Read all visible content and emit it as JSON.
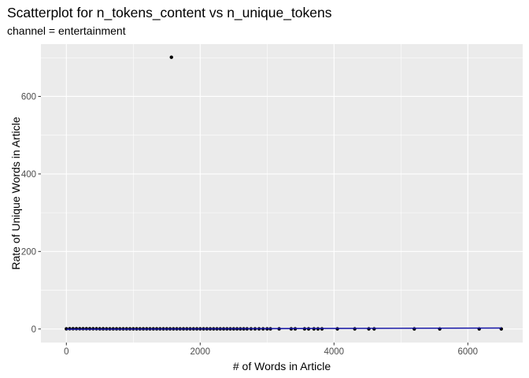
{
  "chart_data": {
    "type": "scatter",
    "title": "Scatterplot for n_tokens_content vs n_unique_tokens",
    "subtitle": "channel =  entertainment",
    "xlabel": "# of Words in Article",
    "ylabel": "Rate of Unique Words in Article",
    "xlim": [
      -380,
      6820
    ],
    "ylim": [
      -35,
      735
    ],
    "x_ticks": [
      0,
      2000,
      4000,
      6000
    ],
    "y_ticks": [
      0,
      200,
      400,
      600
    ],
    "grid": true,
    "legend": "none",
    "colors": {
      "panel": "#ebebeb",
      "grid": "#ffffff",
      "point": "#000000",
      "fit_line": "#1a1aa6"
    },
    "points": {
      "x": [
        1570,
        0,
        50,
        100,
        150,
        200,
        250,
        300,
        350,
        400,
        450,
        500,
        550,
        600,
        650,
        700,
        750,
        800,
        850,
        900,
        950,
        1000,
        1050,
        1100,
        1150,
        1200,
        1250,
        1300,
        1350,
        1400,
        1450,
        1500,
        1550,
        1600,
        1650,
        1700,
        1750,
        1800,
        1850,
        1900,
        1950,
        2000,
        2050,
        2100,
        2150,
        2200,
        2250,
        2300,
        2350,
        2400,
        2450,
        2500,
        2550,
        2600,
        2650,
        2700,
        2760,
        2820,
        2880,
        2940,
        3000,
        3050,
        3180,
        3360,
        3420,
        3560,
        3620,
        3700,
        3760,
        3820,
        4050,
        4310,
        4520,
        4600,
        5200,
        5580,
        6170,
        6500
      ],
      "y": [
        701,
        0.52,
        0.75,
        0.68,
        0.64,
        0.62,
        0.6,
        0.58,
        0.57,
        0.56,
        0.55,
        0.54,
        0.53,
        0.52,
        0.51,
        0.5,
        0.5,
        0.49,
        0.48,
        0.48,
        0.47,
        0.47,
        0.46,
        0.46,
        0.45,
        0.45,
        0.44,
        0.44,
        0.44,
        0.43,
        0.43,
        0.43,
        0.42,
        0.42,
        0.42,
        0.41,
        0.41,
        0.41,
        0.4,
        0.4,
        0.4,
        0.4,
        0.39,
        0.39,
        0.39,
        0.39,
        0.38,
        0.38,
        0.38,
        0.38,
        0.37,
        0.37,
        0.37,
        0.37,
        0.36,
        0.36,
        0.36,
        0.36,
        0.35,
        0.35,
        0.35,
        0.35,
        0.34,
        0.33,
        0.33,
        0.33,
        0.32,
        0.32,
        0.32,
        0.31,
        0.31,
        0.3,
        0.3,
        0.3,
        0.28,
        0.27,
        0.26,
        0.25
      ]
    },
    "fit_line": {
      "x": [
        0,
        6500
      ],
      "y": [
        -0.5,
        2.5
      ]
    }
  }
}
